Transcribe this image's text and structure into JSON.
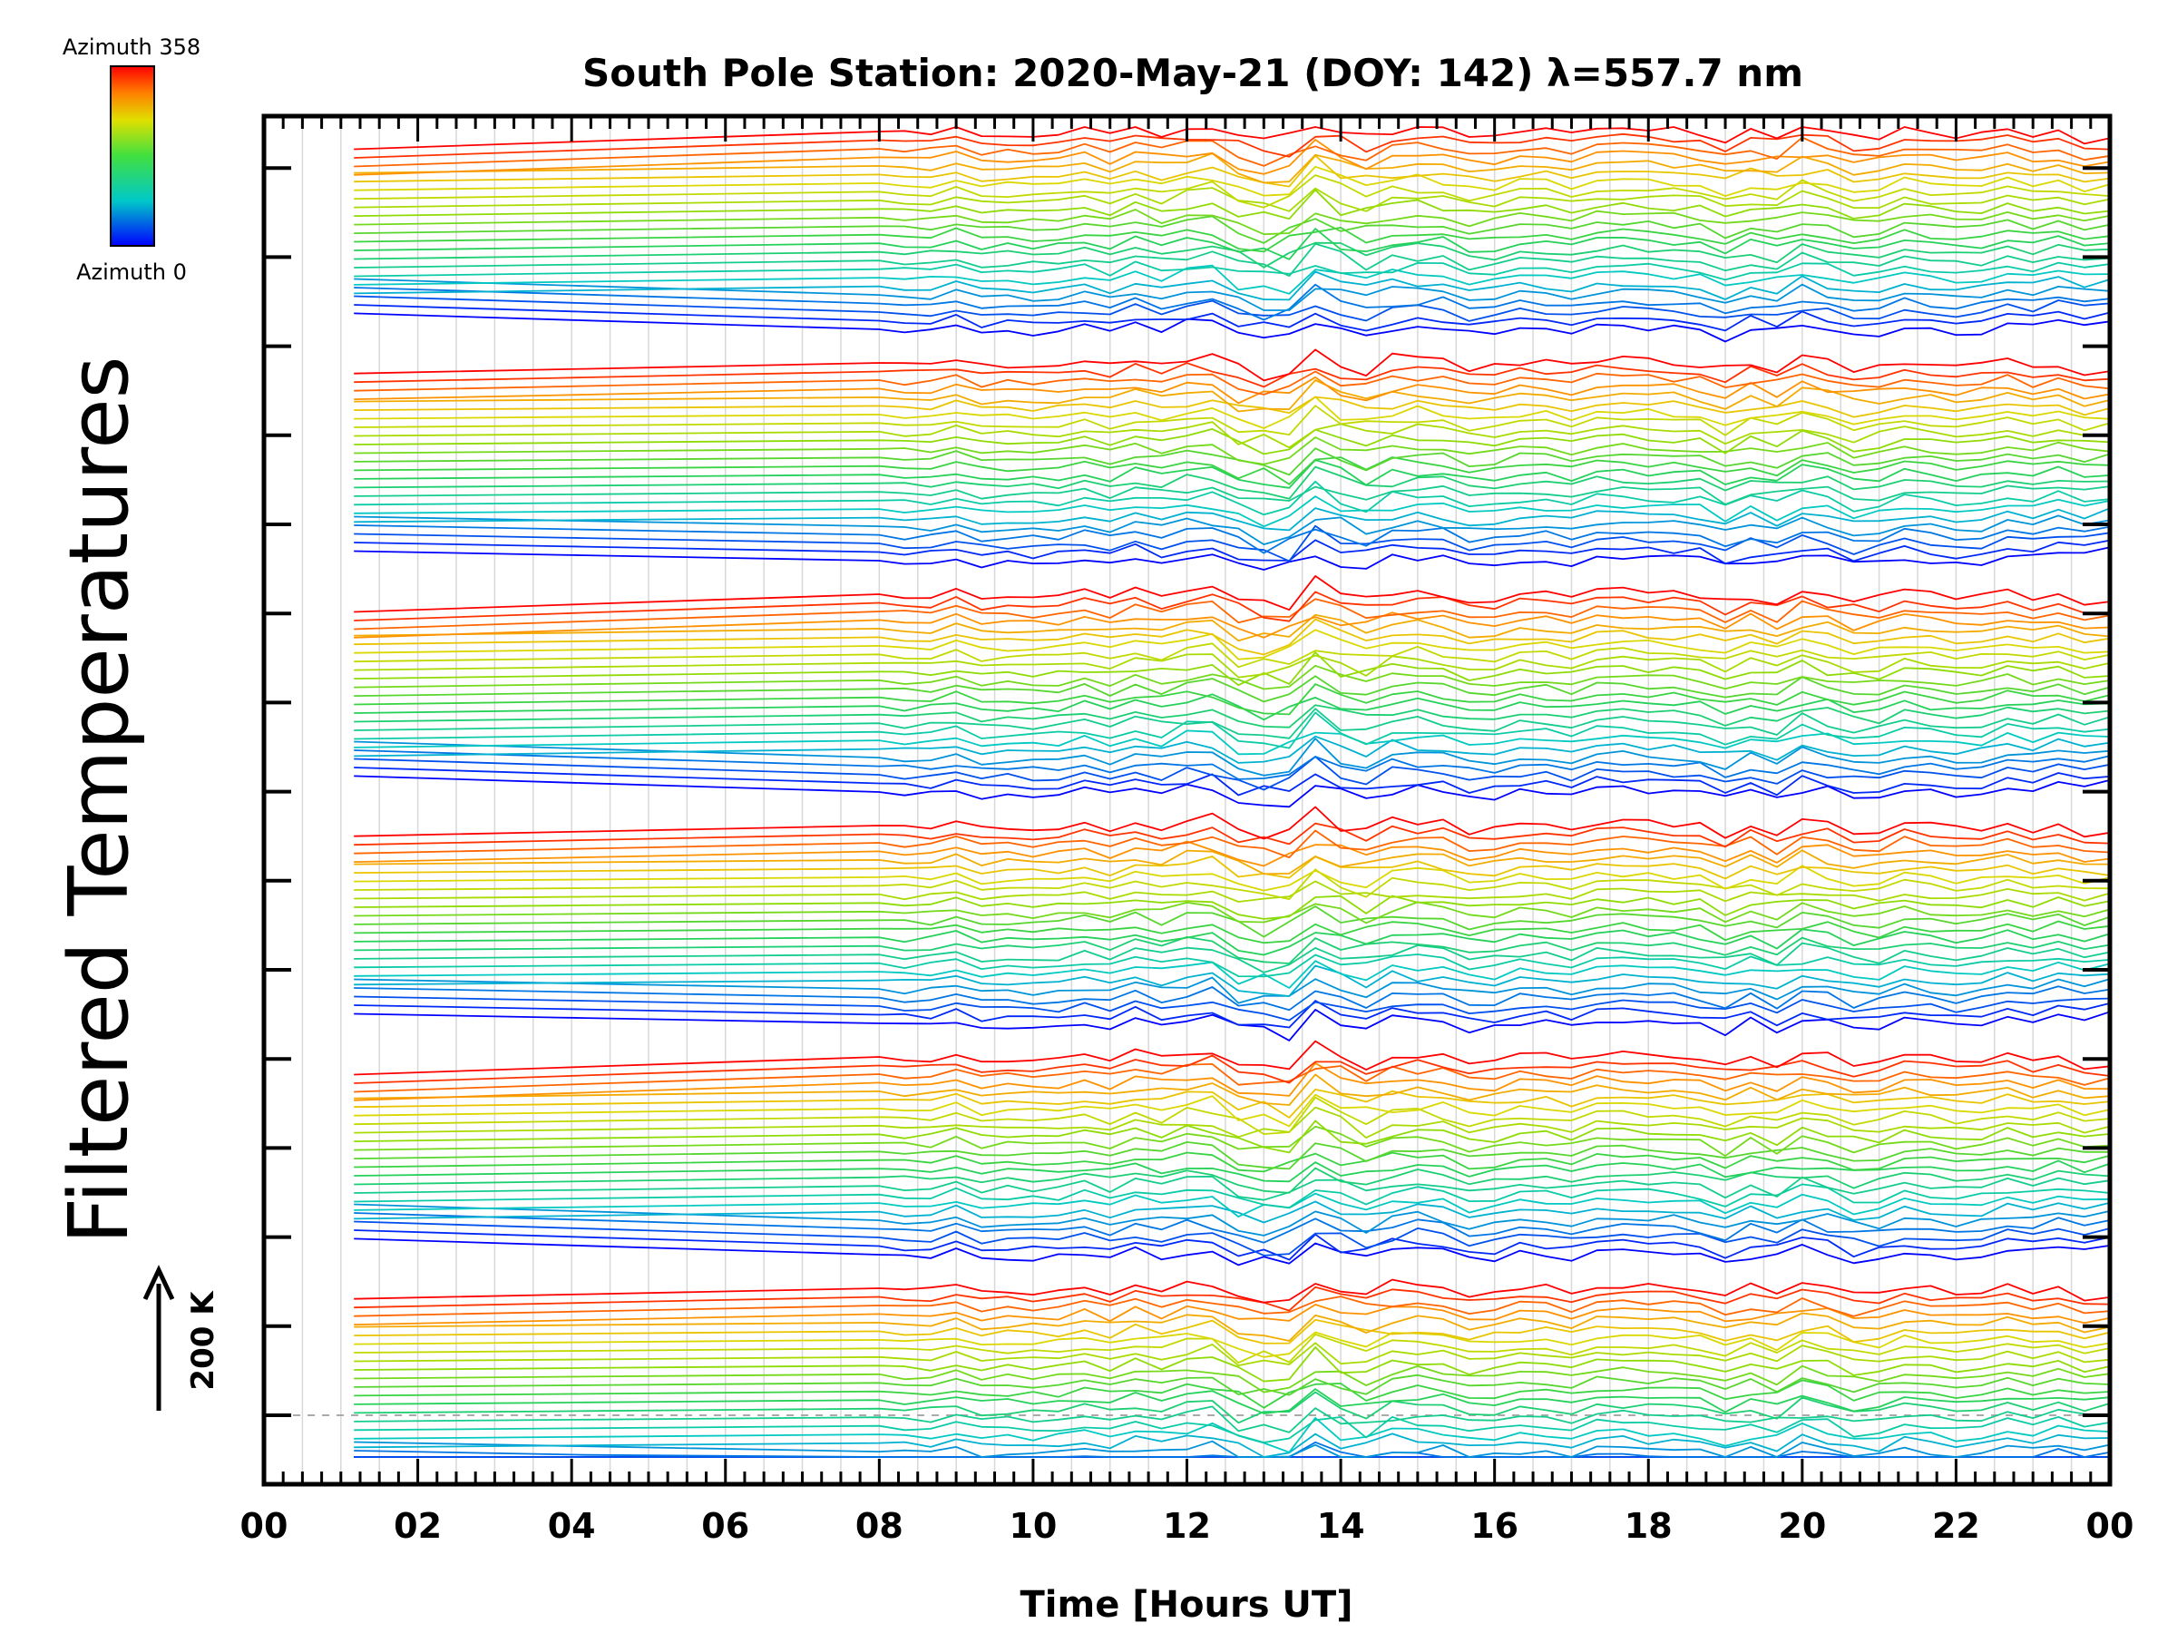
{
  "chart_data": {
    "type": "line",
    "title": "South Pole Station: 2020-May-21 (DOY: 142) λ=557.7 nm",
    "xlabel": "Time [Hours UT]",
    "ylabel": "Filtered Temperatures",
    "xlim": [
      0,
      24
    ],
    "x_tick_labels": [
      "00",
      "02",
      "04",
      "06",
      "08",
      "10",
      "12",
      "14",
      "16",
      "18",
      "20",
      "22",
      "00"
    ],
    "grid": "vertical lines every 0.5 hour",
    "colorbar": {
      "top_label": "Azimuth 358",
      "bottom_label": "Azimuth 0",
      "colormap": "rainbow"
    },
    "scale_bar": {
      "label": "200 K",
      "direction": "up"
    },
    "series_groups": 6,
    "lines_per_group": 24,
    "azimuth_range": [
      0,
      358
    ],
    "sample_times": [
      1.17,
      3.83,
      4.17,
      8.0,
      8.33,
      8.67,
      9.0,
      9.33,
      9.67,
      10.0,
      10.33,
      10.67,
      11.0,
      11.33,
      11.67,
      12.0,
      12.33,
      12.67,
      13.0,
      13.33,
      13.67,
      14.0,
      14.33,
      14.67,
      15.0,
      15.33,
      15.67,
      16.0,
      16.33,
      16.67,
      17.0,
      17.33,
      17.67,
      18.0,
      18.33,
      18.67,
      19.0,
      19.33,
      19.67,
      20.0,
      20.33,
      20.67,
      21.0,
      21.33,
      21.67,
      22.0,
      22.33,
      22.67,
      23.0,
      23.33,
      23.67,
      24.0
    ]
  }
}
